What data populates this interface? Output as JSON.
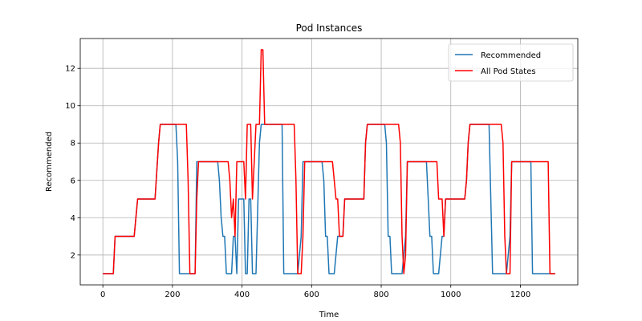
{
  "chart_data": {
    "type": "line",
    "title": "Pod Instances",
    "xlabel": "Time",
    "ylabel": "Recommended",
    "xlim": [
      -65,
      1365
    ],
    "ylim": [
      0.4,
      13.6
    ],
    "xticks": [
      0,
      200,
      400,
      600,
      800,
      1000,
      1200
    ],
    "yticks": [
      2,
      4,
      6,
      8,
      10,
      12
    ],
    "grid": true,
    "legend_position": "top-right",
    "series": [
      {
        "name": "Recommended",
        "color": "#1f77b4",
        "points": [
          [
            0,
            1
          ],
          [
            30,
            1
          ],
          [
            35,
            3
          ],
          [
            90,
            3
          ],
          [
            100,
            5
          ],
          [
            150,
            5
          ],
          [
            160,
            8
          ],
          [
            165,
            9
          ],
          [
            210,
            9
          ],
          [
            215,
            7
          ],
          [
            220,
            1
          ],
          [
            250,
            1
          ],
          [
            265,
            1
          ],
          [
            270,
            7
          ],
          [
            330,
            7
          ],
          [
            335,
            6
          ],
          [
            340,
            4
          ],
          [
            345,
            3
          ],
          [
            350,
            3
          ],
          [
            355,
            1
          ],
          [
            370,
            1
          ],
          [
            375,
            3
          ],
          [
            380,
            3
          ],
          [
            385,
            1
          ],
          [
            390,
            5
          ],
          [
            405,
            5
          ],
          [
            410,
            1
          ],
          [
            415,
            1
          ],
          [
            420,
            5
          ],
          [
            425,
            5
          ],
          [
            430,
            1
          ],
          [
            440,
            1
          ],
          [
            450,
            8
          ],
          [
            455,
            9
          ],
          [
            515,
            9
          ],
          [
            520,
            1
          ],
          [
            560,
            1
          ],
          [
            570,
            3
          ],
          [
            575,
            7
          ],
          [
            630,
            7
          ],
          [
            635,
            6
          ],
          [
            640,
            3
          ],
          [
            645,
            3
          ],
          [
            650,
            1
          ],
          [
            665,
            1
          ],
          [
            675,
            3
          ],
          [
            690,
            3
          ],
          [
            695,
            5
          ],
          [
            750,
            5
          ],
          [
            755,
            8
          ],
          [
            760,
            9
          ],
          [
            810,
            9
          ],
          [
            815,
            8
          ],
          [
            820,
            3
          ],
          [
            825,
            3
          ],
          [
            830,
            1
          ],
          [
            860,
            1
          ],
          [
            870,
            3
          ],
          [
            875,
            7
          ],
          [
            930,
            7
          ],
          [
            935,
            5
          ],
          [
            940,
            3
          ],
          [
            945,
            3
          ],
          [
            950,
            1
          ],
          [
            965,
            1
          ],
          [
            975,
            3
          ],
          [
            980,
            3
          ],
          [
            985,
            5
          ],
          [
            1040,
            5
          ],
          [
            1045,
            6
          ],
          [
            1050,
            8
          ],
          [
            1055,
            9
          ],
          [
            1110,
            9
          ],
          [
            1115,
            5
          ],
          [
            1120,
            1
          ],
          [
            1160,
            1
          ],
          [
            1170,
            3
          ],
          [
            1175,
            7
          ],
          [
            1230,
            7
          ],
          [
            1235,
            1
          ],
          [
            1300,
            1
          ]
        ]
      },
      {
        "name": "All Pod States",
        "color": "#ff0000",
        "points": [
          [
            0,
            1
          ],
          [
            30,
            1
          ],
          [
            35,
            3
          ],
          [
            90,
            3
          ],
          [
            100,
            5
          ],
          [
            150,
            5
          ],
          [
            160,
            8
          ],
          [
            165,
            9
          ],
          [
            240,
            9
          ],
          [
            245,
            6
          ],
          [
            250,
            1
          ],
          [
            265,
            1
          ],
          [
            270,
            5
          ],
          [
            275,
            7
          ],
          [
            360,
            7
          ],
          [
            365,
            6
          ],
          [
            370,
            4
          ],
          [
            375,
            5
          ],
          [
            380,
            3
          ],
          [
            385,
            7
          ],
          [
            405,
            7
          ],
          [
            410,
            5
          ],
          [
            415,
            9
          ],
          [
            425,
            9
          ],
          [
            430,
            5
          ],
          [
            440,
            9
          ],
          [
            450,
            9
          ],
          [
            455,
            13
          ],
          [
            460,
            13
          ],
          [
            465,
            9
          ],
          [
            550,
            9
          ],
          [
            555,
            6
          ],
          [
            560,
            1
          ],
          [
            570,
            1
          ],
          [
            575,
            3
          ],
          [
            580,
            7
          ],
          [
            660,
            7
          ],
          [
            665,
            6
          ],
          [
            670,
            5
          ],
          [
            675,
            5
          ],
          [
            680,
            3
          ],
          [
            690,
            3
          ],
          [
            695,
            5
          ],
          [
            750,
            5
          ],
          [
            755,
            8
          ],
          [
            760,
            9
          ],
          [
            850,
            9
          ],
          [
            855,
            8
          ],
          [
            860,
            3
          ],
          [
            865,
            1
          ],
          [
            870,
            2
          ],
          [
            875,
            7
          ],
          [
            960,
            7
          ],
          [
            965,
            5
          ],
          [
            975,
            5
          ],
          [
            980,
            3
          ],
          [
            985,
            5
          ],
          [
            1040,
            5
          ],
          [
            1045,
            6
          ],
          [
            1050,
            8
          ],
          [
            1055,
            9
          ],
          [
            1145,
            9
          ],
          [
            1150,
            8
          ],
          [
            1155,
            3
          ],
          [
            1160,
            1
          ],
          [
            1170,
            1
          ],
          [
            1175,
            7
          ],
          [
            1280,
            7
          ],
          [
            1285,
            1
          ],
          [
            1300,
            1
          ]
        ]
      }
    ]
  }
}
